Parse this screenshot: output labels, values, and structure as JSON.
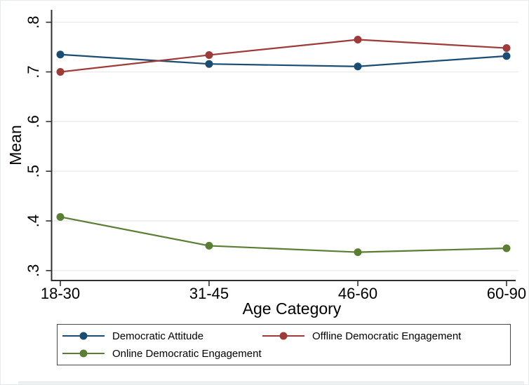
{
  "chart_data": {
    "type": "line",
    "title": "",
    "xlabel": "Age Category",
    "ylabel": "Mean",
    "categories": [
      "18-30",
      "31-45",
      "46-60",
      "60-90"
    ],
    "series": [
      {
        "name": "Democratic Attitude",
        "color": "#1b4d74",
        "values": [
          0.735,
          0.716,
          0.711,
          0.732
        ]
      },
      {
        "name": "Offline Democratic Engagement",
        "color": "#9e3a38",
        "values": [
          0.7,
          0.734,
          0.765,
          0.748
        ]
      },
      {
        "name": "Online Democratic Engagement",
        "color": "#5a7e33",
        "values": [
          0.408,
          0.35,
          0.337,
          0.345
        ]
      }
    ],
    "y_ticks": [
      0.3,
      0.4,
      0.5,
      0.6,
      0.7,
      0.8
    ],
    "y_tick_labels": [
      ".3",
      ".4",
      ".5",
      ".6",
      ".7",
      ".8"
    ],
    "ylim": [
      0.28,
      0.825
    ],
    "grid": true,
    "legend_position": "bottom",
    "colors": {
      "grid_line": "#ebebeb",
      "axis_line": "#303030",
      "text": "#000000",
      "legend_border": "#474747"
    }
  }
}
